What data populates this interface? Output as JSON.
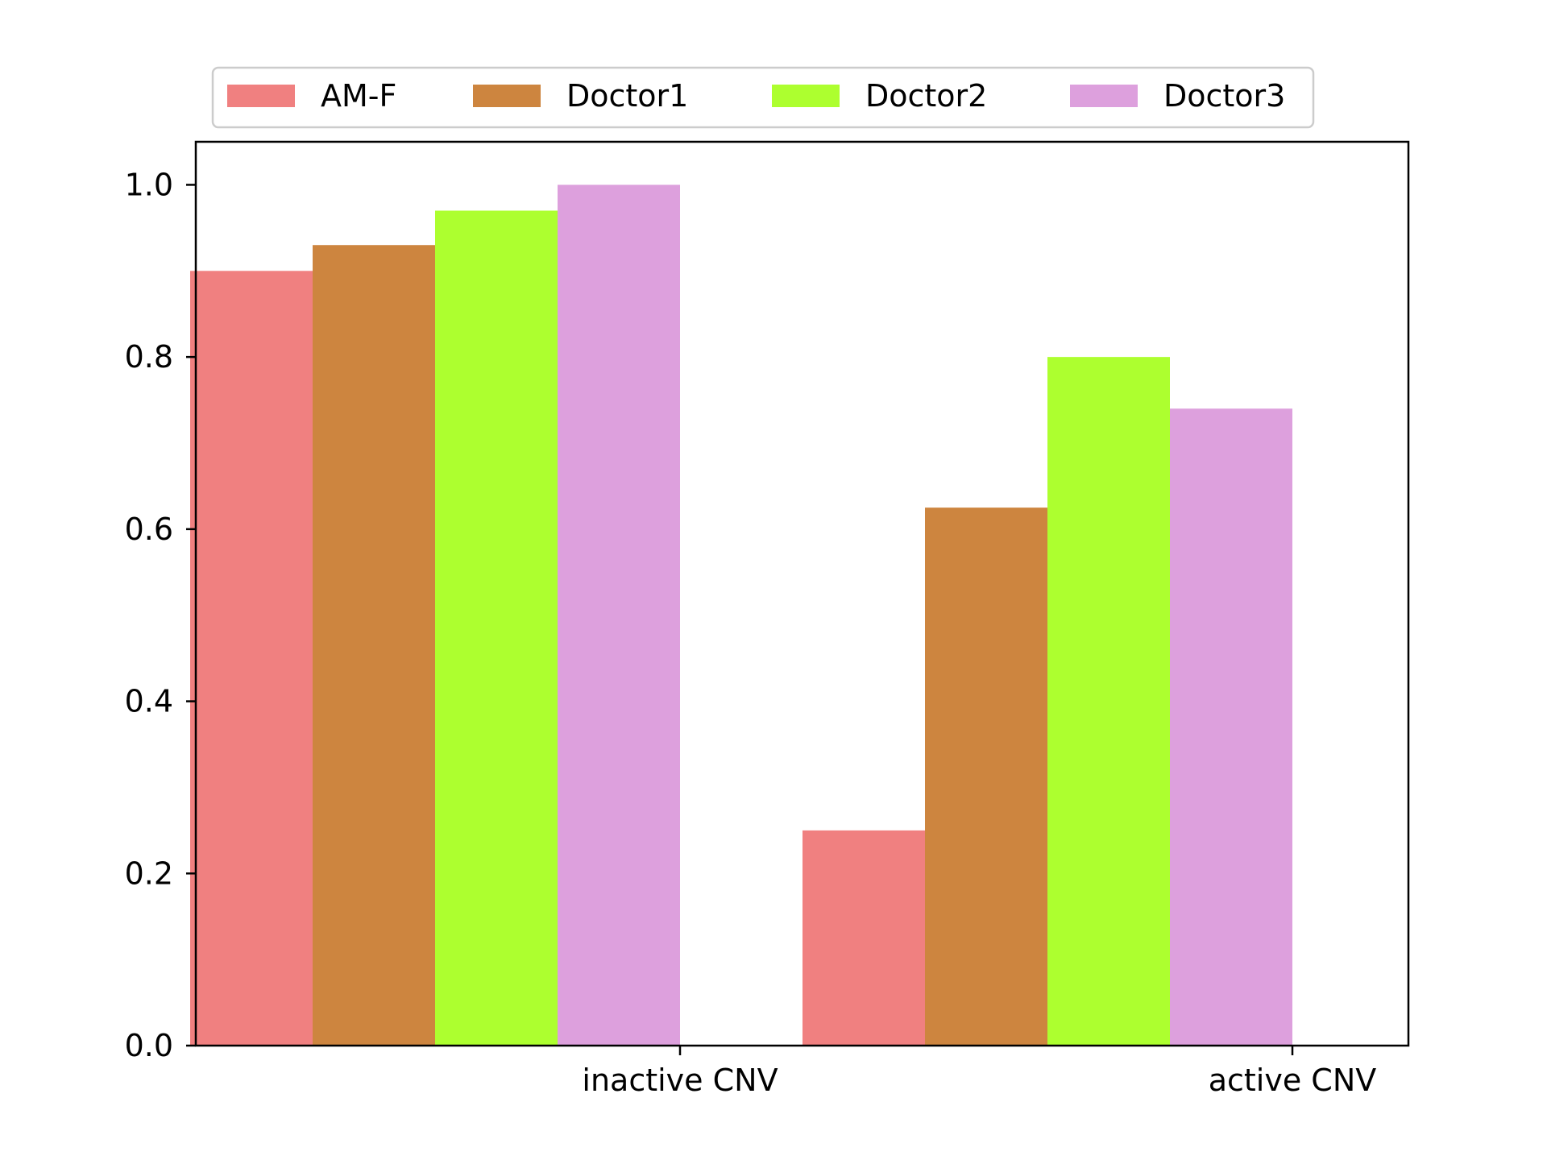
{
  "chart_data": {
    "type": "bar",
    "categories": [
      "inactive CNV",
      "active CNV"
    ],
    "series": [
      {
        "name": "AM-F",
        "color": "#f08080",
        "values": [
          0.9,
          0.25
        ]
      },
      {
        "name": "Doctor1",
        "color": "#cd853f",
        "values": [
          0.93,
          0.625
        ]
      },
      {
        "name": "Doctor2",
        "color": "#adff2f",
        "values": [
          0.97,
          0.8
        ]
      },
      {
        "name": "Doctor3",
        "color": "#dda0dd",
        "values": [
          1.0,
          0.74
        ]
      }
    ],
    "title": "",
    "xlabel": "",
    "ylabel": "",
    "ylim": [
      0,
      1.05
    ],
    "yticks": [
      "0.0",
      "0.2",
      "0.4",
      "0.6",
      "0.8",
      "1.0"
    ],
    "grid": false,
    "legend_position": "top-center, above plot, horizontal"
  }
}
